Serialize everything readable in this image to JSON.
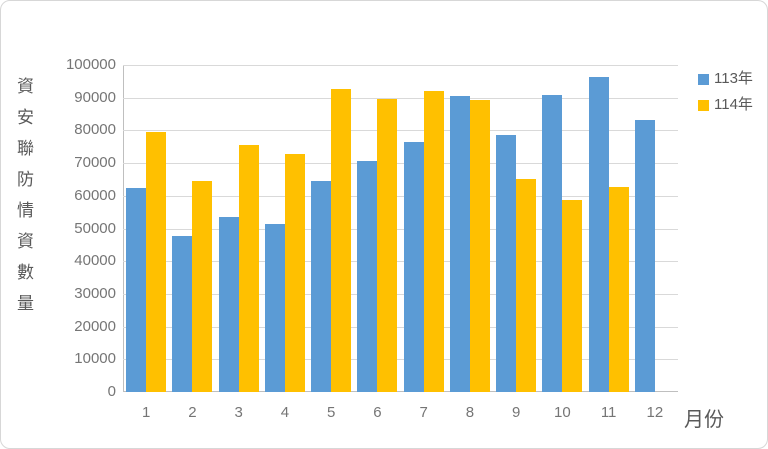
{
  "chart_data": {
    "type": "bar",
    "title": "",
    "categories": [
      "1",
      "2",
      "3",
      "4",
      "5",
      "6",
      "7",
      "8",
      "9",
      "10",
      "11",
      "12"
    ],
    "series": [
      {
        "name": "113年",
        "color": "#5B9BD5",
        "values": [
          62500,
          47700,
          53600,
          51300,
          64600,
          70500,
          76500,
          90600,
          78500,
          90800,
          96300,
          83200
        ]
      },
      {
        "name": "114年",
        "color": "#FFC000",
        "values": [
          79600,
          64500,
          75400,
          72800,
          92600,
          89600,
          92200,
          89400,
          65200,
          58600,
          62700,
          null
        ]
      }
    ],
    "xlabel": "月份",
    "ylabel": "資安聯防情資數量",
    "ylim": [
      0,
      100000
    ],
    "ytick_step": 10000,
    "y_tick_labels": [
      "100000",
      "90000",
      "80000",
      "70000",
      "60000",
      "50000",
      "40000",
      "30000",
      "20000",
      "10000",
      "0"
    ],
    "grid": "horizontal",
    "legend_position": "top-right",
    "legend": [
      "113年",
      "114年"
    ]
  },
  "colors": {
    "series_113": "#5B9BD5",
    "series_114": "#FFC000",
    "gridline": "#D9D9D9",
    "axis_line": "#BFBFBF",
    "tick_text": "#757575",
    "label_text": "#595959",
    "frame_border": "#D7D7D7"
  }
}
